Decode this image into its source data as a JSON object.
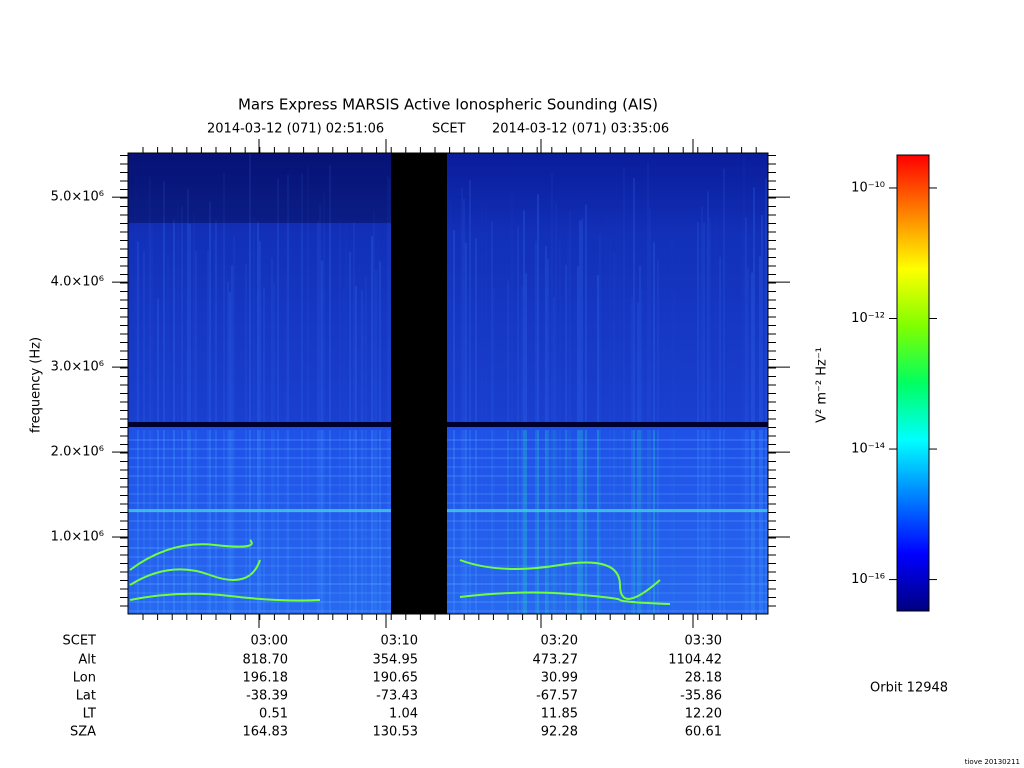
{
  "chart_data": {
    "type": "spectrogram",
    "title": "Mars Express MARSIS Active Ionospheric Sounding (AIS)",
    "time_start": "2014-03-12 (071) 02:51:06",
    "time_scale": "SCET",
    "time_end": "2014-03-12 (071) 03:35:06",
    "y_label": "frequency (Hz)",
    "ylim": [
      94000,
      5520000
    ],
    "yticks": [
      {
        "value": 1000000,
        "label": "1.0×10⁶"
      },
      {
        "value": 2000000,
        "label": "2.0×10⁶"
      },
      {
        "value": 3000000,
        "label": "3.0×10⁶"
      },
      {
        "value": 4000000,
        "label": "4.0×10⁶"
      },
      {
        "value": 5000000,
        "label": "5.0×10⁶"
      }
    ],
    "colorbar": {
      "label": "V² m⁻² Hz⁻¹",
      "log_scale": true,
      "lim": [
        3.3e-17,
        3.2e-10
      ],
      "ticks": [
        {
          "value": 1e-10,
          "label": "10⁻¹⁰"
        },
        {
          "value": 1e-12,
          "label": "10⁻¹²"
        },
        {
          "value": 1e-14,
          "label": "10⁻¹⁴"
        },
        {
          "value": 1e-16,
          "label": "10⁻¹⁶"
        }
      ],
      "colormap": [
        "#000080",
        "#0000ff",
        "#0080ff",
        "#00ffff",
        "#00ff60",
        "#80ff00",
        "#ffff00",
        "#ff8000",
        "#ff0000"
      ]
    }
  },
  "ephemeris": {
    "row_labels": [
      "SCET",
      "Alt",
      "Lon",
      "Lat",
      "LT",
      "SZA"
    ],
    "columns": [
      [
        "03:00",
        "818.70",
        "196.18",
        "-38.39",
        "0.51",
        "164.83"
      ],
      [
        "03:10",
        "354.95",
        "190.65",
        "-73.43",
        "1.04",
        "130.53"
      ],
      [
        "03:20",
        "473.27",
        "30.99",
        "-67.57",
        "11.85",
        "92.28"
      ],
      [
        "03:30",
        "1104.42",
        "28.18",
        "-35.86",
        "12.20",
        "60.61"
      ]
    ]
  },
  "orbit": "Orbit 12948",
  "version": "tiove 20130211"
}
